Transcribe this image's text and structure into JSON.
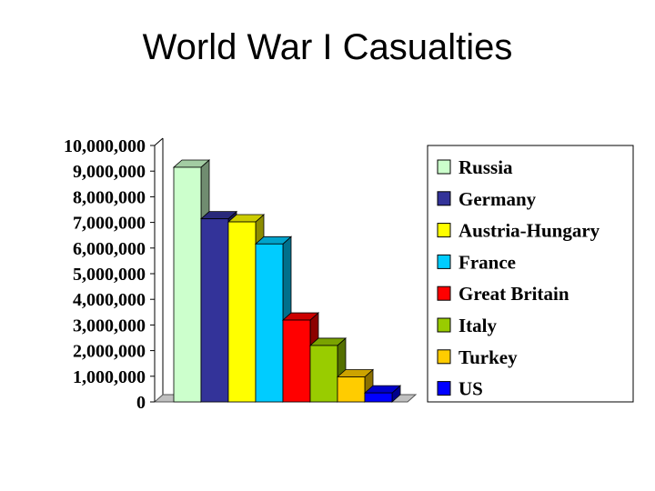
{
  "slide": {
    "title": "World War I Casualties"
  },
  "chart_data": {
    "type": "bar",
    "title": "",
    "xlabel": "",
    "ylabel": "",
    "ylim": [
      0,
      10000000
    ],
    "yticks": [
      0,
      1000000,
      2000000,
      3000000,
      4000000,
      5000000,
      6000000,
      7000000,
      8000000,
      9000000,
      10000000
    ],
    "ytick_labels": [
      "0",
      "1,000,000",
      "2,000,000",
      "3,000,000",
      "4,000,000",
      "5,000,000",
      "6,000,000",
      "7,000,000",
      "8,000,000",
      "9,000,000",
      "10,000,000"
    ],
    "grid": false,
    "style": "3d",
    "legend_position": "right",
    "series": [
      {
        "name": "Russia",
        "value": 9150000,
        "color": "#ccffcc"
      },
      {
        "name": "Germany",
        "value": 7140000,
        "color": "#333399"
      },
      {
        "name": "Austria-Hungary",
        "value": 7020000,
        "color": "#ffff00"
      },
      {
        "name": "France",
        "value": 6160000,
        "color": "#00ccff"
      },
      {
        "name": "Great Britain",
        "value": 3190000,
        "color": "#ff0000"
      },
      {
        "name": "Italy",
        "value": 2200000,
        "color": "#99cc00"
      },
      {
        "name": "Turkey",
        "value": 975000,
        "color": "#ffcc00"
      },
      {
        "name": "US",
        "value": 350000,
        "color": "#0000ff"
      }
    ]
  }
}
